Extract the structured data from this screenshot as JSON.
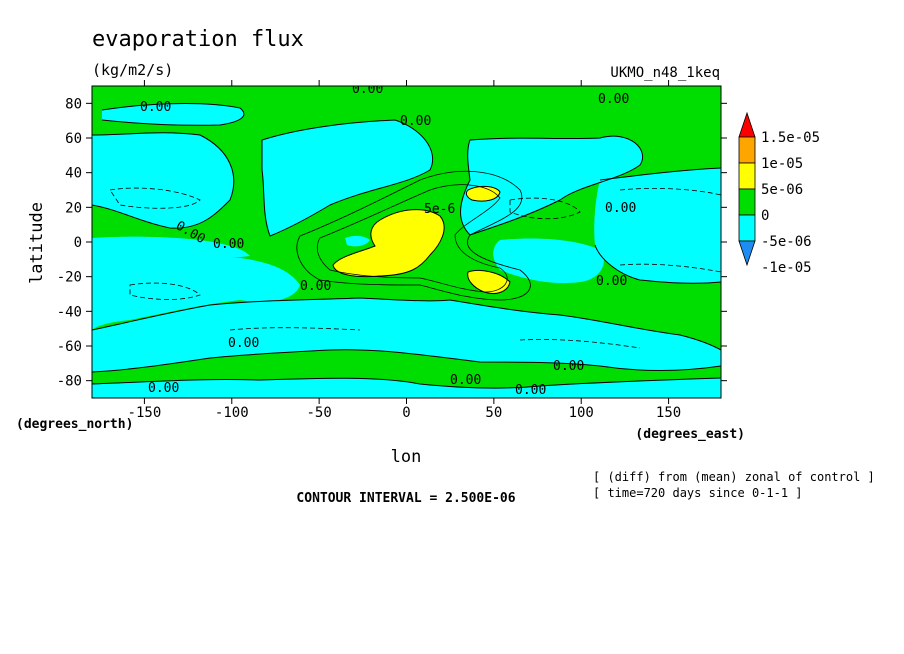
{
  "chart_data": {
    "type": "heatmap",
    "title": "evaporation flux",
    "units": "(kg/m2/s)",
    "model": "UKMO_n48_1keq",
    "xlabel": "lon",
    "ylabel": "latitude",
    "x_units_label": "(degrees_east)",
    "y_units_label": "(degrees_north)",
    "xlim": [
      -180,
      180
    ],
    "ylim": [
      -90,
      90
    ],
    "x_ticks": [
      -150,
      -100,
      -50,
      0,
      50,
      100,
      150
    ],
    "x_tick_labels": [
      "-150",
      "-100",
      "-50",
      "0",
      "50",
      "100",
      "150"
    ],
    "y_ticks": [
      80,
      60,
      40,
      20,
      0,
      -20,
      -40,
      -60,
      -80
    ],
    "y_tick_labels": [
      "80",
      "60",
      "40",
      "20",
      "0",
      "-20",
      "-40",
      "-60",
      "-80"
    ],
    "colorbar": {
      "labels": [
        "1.5e-05",
        "1e-05",
        "5e-06",
        "0",
        "-5e-06",
        "-1e-05"
      ],
      "levels": [
        -1e-05,
        -5e-06,
        0,
        5e-06,
        1e-05,
        1.5e-05
      ],
      "colors": [
        "#1e8cf0",
        "#00ffff",
        "#00dd00",
        "#ffff00",
        "#ffa500",
        "#ff0000"
      ]
    },
    "contour_interval": "CONTOUR INTERVAL = 2.500E-06",
    "contour_labels": [
      "0.00",
      "5e-6"
    ],
    "annotations": [
      "[ (diff) from (mean) zonal of control ]",
      "[ time=720 days since 0-1-1 ]"
    ]
  }
}
